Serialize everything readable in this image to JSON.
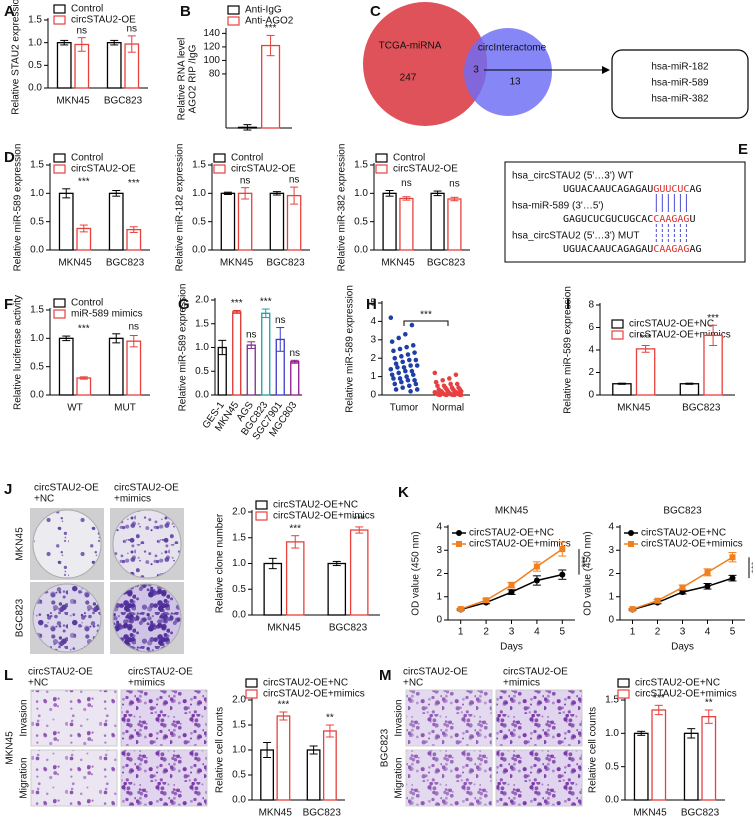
{
  "chart_data": [
    {
      "panel": "A",
      "type": "bar",
      "ylabel": "Relative STAU2 expression",
      "categories": [
        "MKN45",
        "BGC823"
      ],
      "series": [
        {
          "name": "Control",
          "color": "#000000",
          "values": [
            1.0,
            1.0
          ],
          "errors": [
            0.05,
            0.05
          ]
        },
        {
          "name": "circSTAU2-OE",
          "color": "#e8403c",
          "values": [
            0.96,
            0.97
          ],
          "errors": [
            0.15,
            0.18
          ]
        }
      ],
      "annotations": [
        "ns",
        "ns"
      ],
      "ylim": [
        0,
        1.5
      ],
      "yticks": [
        {
          "value": 0,
          "label": "0.0"
        },
        {
          "value": 0.5,
          "label": "0.5"
        },
        {
          "value": 1,
          "label": "1.0"
        },
        {
          "value": 1.5,
          "label": "1.5"
        }
      ],
      "legend": true
    },
    {
      "panel": "B",
      "type": "bar",
      "ylabel": [
        "Relative RNA level",
        "AGO2 RIP /IgG"
      ],
      "categories": [
        null
      ],
      "series": [
        {
          "name": "Anti-IgG",
          "color": "#000000",
          "values": [
            1
          ],
          "errors": [
            4
          ]
        },
        {
          "name": "Anti-AGO2",
          "color": "#e8403c",
          "values": [
            122
          ],
          "errors": [
            15
          ]
        }
      ],
      "annotations": [
        "***"
      ],
      "ylim": [
        0,
        145
      ],
      "yticks": [
        80,
        100,
        120,
        140
      ],
      "legend": true
    },
    {
      "panel": "D",
      "type": "bar",
      "ylabel": "Relative miR-589 expression",
      "categories": [
        "MKN45",
        "BGC823"
      ],
      "series": [
        {
          "name": "Control",
          "color": "#000000",
          "values": [
            1.0,
            1.0
          ],
          "errors": [
            0.08,
            0.05
          ]
        },
        {
          "name": "circSTAU2-OE",
          "color": "#e8403c",
          "values": [
            0.38,
            0.36
          ],
          "errors": [
            0.06,
            0.05
          ]
        }
      ],
      "annotations": [
        "***",
        "***"
      ],
      "ylim": [
        0,
        1.5
      ],
      "yticks": [
        {
          "value": 0,
          "label": "0.0"
        },
        {
          "value": 0.5,
          "label": "0.5"
        },
        {
          "value": 1,
          "label": "1.0"
        },
        {
          "value": 1.5,
          "label": "1.5"
        }
      ],
      "legend": true
    },
    {
      "type": "bar",
      "ylabel": "Relative miR-182 expression",
      "categories": [
        "MKN45",
        "BGC823"
      ],
      "series": [
        {
          "name": "Control",
          "color": "#000000",
          "values": [
            1.0,
            1.0
          ],
          "errors": [
            0.02,
            0.03
          ]
        },
        {
          "name": "circSTAU2-OE",
          "color": "#e8403c",
          "values": [
            1.0,
            0.96
          ],
          "errors": [
            0.1,
            0.15
          ]
        }
      ],
      "annotations": [
        "ns",
        "ns"
      ],
      "ylim": [
        0,
        1.5
      ],
      "yticks": [
        {
          "value": 0,
          "label": "0.0"
        },
        {
          "value": 0.5,
          "label": "0.5"
        },
        {
          "value": 1,
          "label": "1.0"
        },
        {
          "value": 1.5,
          "label": "1.5"
        }
      ],
      "legend": true
    },
    {
      "type": "bar",
      "ylabel": "Relative miR-382 expression",
      "categories": [
        "MKN45",
        "BGC823"
      ],
      "series": [
        {
          "name": "Control",
          "color": "#000000",
          "values": [
            1.0,
            1.0
          ],
          "errors": [
            0.05,
            0.04
          ]
        },
        {
          "name": "circSTAU2-OE",
          "color": "#e8403c",
          "values": [
            0.91,
            0.9
          ],
          "errors": [
            0.03,
            0.03
          ]
        }
      ],
      "annotations": [
        "ns",
        "ns"
      ],
      "ylim": [
        0,
        1.5
      ],
      "yticks": [
        {
          "value": 0,
          "label": "0.0"
        },
        {
          "value": 0.5,
          "label": "0.5"
        },
        {
          "value": 1,
          "label": "1.0"
        },
        {
          "value": 1.5,
          "label": "1.5"
        }
      ],
      "legend": true
    },
    {
      "panel": "F",
      "type": "bar",
      "ylabel": "Relative luciferase activity",
      "categories": [
        "WT",
        "MUT"
      ],
      "series": [
        {
          "name": "Control",
          "color": "#000000",
          "values": [
            1.0,
            1.0
          ],
          "errors": [
            0.04,
            0.08
          ]
        },
        {
          "name": "miR-589 mimics",
          "color": "#e8403c",
          "values": [
            0.3,
            0.95
          ],
          "errors": [
            0.02,
            0.1
          ]
        }
      ],
      "annotations": [
        "***",
        "ns"
      ],
      "ylim": [
        0,
        1.5
      ],
      "yticks": [
        {
          "value": 0,
          "label": "0.0"
        },
        {
          "value": 0.5,
          "label": "0.5"
        },
        {
          "value": 1,
          "label": "1.0"
        },
        {
          "value": 1.5,
          "label": "1.5"
        }
      ],
      "legend": true
    },
    {
      "panel": "G",
      "type": "bar",
      "ylabel": "Relative miR-589 expression",
      "categories": [
        "GES-1",
        "MKN45",
        "AGS",
        "BGC823",
        "SGC7901",
        "MGC803"
      ],
      "values": [
        1.0,
        1.75,
        1.05,
        1.72,
        1.17,
        0.7
      ],
      "errors": [
        0.15,
        0.03,
        0.07,
        0.09,
        0.25,
        0.03
      ],
      "colors": [
        "#000000",
        "#e0302c",
        "#7a2c8c",
        "#1aa0a8",
        "#3a3ac8",
        "#8b1a8b"
      ],
      "annotations": [
        null,
        "***",
        "ns",
        "***",
        "ns",
        "ns"
      ],
      "ylim": [
        0,
        2
      ],
      "yticks": [
        {
          "value": 0,
          "label": "0.0"
        },
        {
          "value": 0.5,
          "label": "0.5"
        },
        {
          "value": 1,
          "label": "1.0"
        },
        {
          "value": 1.5,
          "label": "1.5"
        },
        {
          "value": 2,
          "label": "2.0"
        }
      ]
    },
    {
      "panel": "H",
      "type": "strip",
      "ylabel": "Relative miR-589 expression",
      "categories": [
        "Tumor",
        "Normal"
      ],
      "series": [
        {
          "color": "#1f3fa8",
          "values": [
            4.2,
            3.8,
            3.3,
            3.1,
            2.9,
            2.7,
            2.6,
            2.5,
            2.4,
            2.3,
            2.2,
            2.1,
            2.0,
            1.9,
            1.9,
            1.8,
            1.7,
            1.6,
            1.6,
            1.5,
            1.5,
            1.4,
            1.3,
            1.3,
            1.2,
            1.1,
            1.1,
            1.0,
            0.9,
            0.9,
            0.8,
            0.8,
            0.7,
            0.6,
            0.6,
            0.5,
            0.4,
            0.3,
            0.3,
            0.2
          ]
        },
        {
          "color": "#e84040",
          "values": [
            1.2,
            1.1,
            0.9,
            0.8,
            0.7,
            0.6,
            0.6,
            0.5,
            0.5,
            0.4,
            0.4,
            0.4,
            0.3,
            0.3,
            0.3,
            0.3,
            0.2,
            0.2,
            0.2,
            0.2,
            0.2,
            0.15,
            0.15,
            0.1,
            0.1,
            0.1,
            0.1,
            0.05,
            0.05,
            0.05,
            0.05,
            0.02,
            0.02,
            0.02,
            0.01,
            0.01,
            0.01,
            0.01,
            0.01,
            0.01
          ]
        }
      ],
      "annotation": "***",
      "ylim": [
        0,
        5
      ],
      "yticks": [
        0,
        1,
        2,
        3,
        4,
        5
      ]
    },
    {
      "panel": "I",
      "type": "bar",
      "ylabel": "Relative miR-589 expression",
      "categories": [
        "MKN45",
        "BGC823"
      ],
      "series": [
        {
          "name": "circSTAU2-OE+NC",
          "color": "#000000",
          "values": [
            1.0,
            1.0
          ],
          "errors": [
            0.05,
            0.05
          ]
        },
        {
          "name": "circSTAU2-OE+mimics",
          "color": "#e8403c",
          "values": [
            4.1,
            5.3
          ],
          "errors": [
            0.3,
            0.9
          ]
        }
      ],
      "annotations": [
        "***",
        "***"
      ],
      "ylim": [
        0,
        8
      ],
      "yticks": [
        0,
        2,
        4,
        6,
        8
      ],
      "legend": true
    },
    {
      "type": "bar",
      "ylabel": "Relative clone number",
      "categories": [
        "MKN45",
        "BGC823"
      ],
      "series": [
        {
          "name": "circSTAU2-OE+NC",
          "color": "#000000",
          "values": [
            1.0,
            1.0
          ],
          "errors": [
            0.1,
            0.04
          ]
        },
        {
          "name": "circSTAU2-OE+mimics",
          "color": "#e8403c",
          "values": [
            1.42,
            1.65
          ],
          "errors": [
            0.12,
            0.06
          ]
        }
      ],
      "annotations": [
        "***",
        "***"
      ],
      "ylim": [
        0,
        2
      ],
      "yticks": [
        {
          "value": 0,
          "label": "0.0"
        },
        {
          "value": 0.5,
          "label": "0.5"
        },
        {
          "value": 1,
          "label": "1.0"
        },
        {
          "value": 1.5,
          "label": "1.5"
        },
        {
          "value": 2,
          "label": "2.0"
        }
      ],
      "legend": true
    },
    {
      "panel": "K",
      "type": "line",
      "title": "MKN45",
      "xlabel": "Days",
      "ylabel": "OD value (450 nm)",
      "x": [
        1,
        2,
        3,
        4,
        5
      ],
      "xlim": [
        0.5,
        5.5
      ],
      "xticks": [
        1,
        2,
        3,
        4,
        5
      ],
      "ylim": [
        0,
        4
      ],
      "yticks": [
        0,
        1,
        2,
        3,
        4
      ],
      "series": [
        {
          "name": "circSTAU2-OE+NC",
          "color": "#000000",
          "marker": "circle",
          "values": [
            0.45,
            0.75,
            1.2,
            1.7,
            1.95
          ],
          "errors": [
            0.03,
            0.05,
            0.1,
            0.2,
            0.2
          ]
        },
        {
          "name": "circSTAU2-OE+mimics",
          "color": "#f07f1e",
          "marker": "square",
          "values": [
            0.47,
            0.85,
            1.5,
            2.3,
            3.05
          ],
          "errors": [
            0.03,
            0.06,
            0.12,
            0.2,
            0.3
          ]
        }
      ],
      "annotation": "***",
      "legend": true
    },
    {
      "type": "line",
      "title": "BGC823",
      "xlabel": "Days",
      "ylabel": "OD value (450 nm)",
      "x": [
        1,
        2,
        3,
        4,
        5
      ],
      "xlim": [
        0.5,
        5.5
      ],
      "xticks": [
        1,
        2,
        3,
        4,
        5
      ],
      "ylim": [
        0,
        4
      ],
      "yticks": [
        0,
        1,
        2,
        3,
        4
      ],
      "series": [
        {
          "name": "circSTAU2-OE+NC",
          "color": "#000000",
          "marker": "circle",
          "values": [
            0.45,
            0.75,
            1.2,
            1.45,
            1.8
          ],
          "errors": [
            0.03,
            0.05,
            0.08,
            0.12,
            0.12
          ]
        },
        {
          "name": "circSTAU2-OE+mimics",
          "color": "#f07f1e",
          "marker": "square",
          "values": [
            0.47,
            0.83,
            1.4,
            2.05,
            2.7
          ],
          "errors": [
            0.03,
            0.05,
            0.1,
            0.15,
            0.2
          ]
        }
      ],
      "annotation": "***",
      "legend": true
    },
    {
      "type": "bar",
      "ylabel": "Relative cell counts",
      "categories": [
        "MKN45",
        "BGC823"
      ],
      "series": [
        {
          "name": "circSTAU2-OE+NC",
          "color": "#000000",
          "values": [
            1.0,
            1.0
          ],
          "errors": [
            0.15,
            0.08
          ]
        },
        {
          "name": "circSTAU2-OE+mimics",
          "color": "#e8403c",
          "values": [
            1.68,
            1.38
          ],
          "errors": [
            0.08,
            0.12
          ]
        }
      ],
      "annotations": [
        "***",
        "**"
      ],
      "ylim": [
        0,
        2
      ],
      "yticks": [
        {
          "value": 0,
          "label": "0.0"
        },
        {
          "value": 0.5,
          "label": "0.5"
        },
        {
          "value": 1,
          "label": "1.0"
        },
        {
          "value": 1.5,
          "label": "1.5"
        },
        {
          "value": 2,
          "label": "2.0"
        }
      ],
      "legend": true
    },
    {
      "type": "bar",
      "ylabel": "Relative cell counts",
      "categories": [
        "MKN45",
        "BGC823"
      ],
      "series": [
        {
          "name": "circSTAU2-OE+NC",
          "color": "#000000",
          "values": [
            1.0,
            1.0
          ],
          "errors": [
            0.03,
            0.07
          ]
        },
        {
          "name": "circSTAU2-OE+mimics",
          "color": "#e8403c",
          "values": [
            1.35,
            1.25
          ],
          "errors": [
            0.07,
            0.1
          ]
        }
      ],
      "annotations": [
        "***",
        "**"
      ],
      "ylim": [
        0,
        1.5
      ],
      "yticks": [
        {
          "value": 0,
          "label": "0.0"
        },
        {
          "value": 0.5,
          "label": "0.5"
        },
        {
          "value": 1,
          "label": "1.0"
        },
        {
          "value": 1.5,
          "label": "1.5"
        }
      ],
      "legend": true
    }
  ],
  "venn": {
    "panel": "C",
    "left": "TCGA-miRNA",
    "left_count": "247",
    "right": "circInteractome",
    "overlap_count": "3",
    "right_count": "13",
    "targets": [
      "hsa-miR-182",
      "hsa-miR-589",
      "hsa-miR-382"
    ]
  },
  "sequences": {
    "panel": "E",
    "rows": [
      {
        "label": "hsa_circSTAU2 (5'…3') WT",
        "parts": [
          "UGUACAAUCAGAGAU",
          "GUUCUC",
          "AG"
        ]
      },
      {
        "label": "hsa-miR-589 (3'…5')",
        "parts": [
          "GAGUCUCGUCUGCAC",
          "CAAGAG",
          "U"
        ]
      },
      {
        "label": "hsa_circSTAU2 (5'…3') MUT",
        "parts": [
          "UGUACAAUCAGAGAU",
          "CAAGAG",
          "AG"
        ]
      }
    ]
  },
  "images": [
    {
      "panel": "J",
      "columns": [
        [
          "circSTAU2-OE",
          "+NC"
        ],
        [
          "circSTAU2-OE",
          "+mimics"
        ]
      ],
      "rows": [
        "MKN45",
        "BGC823"
      ]
    },
    {
      "panel": "L",
      "side": "MKN45",
      "columns": [
        [
          "circSTAU2-OE",
          "+NC"
        ],
        [
          "circSTAU2-OE",
          "+mimics"
        ]
      ],
      "rows": [
        "Invasion",
        "Migration"
      ]
    },
    {
      "panel": "M",
      "side": "BGC823",
      "columns": [
        [
          "circSTAU2-OE",
          "+NC"
        ],
        [
          "circSTAU2-OE",
          "+mimics"
        ]
      ],
      "rows": [
        "Invasion",
        "Migration"
      ]
    }
  ]
}
